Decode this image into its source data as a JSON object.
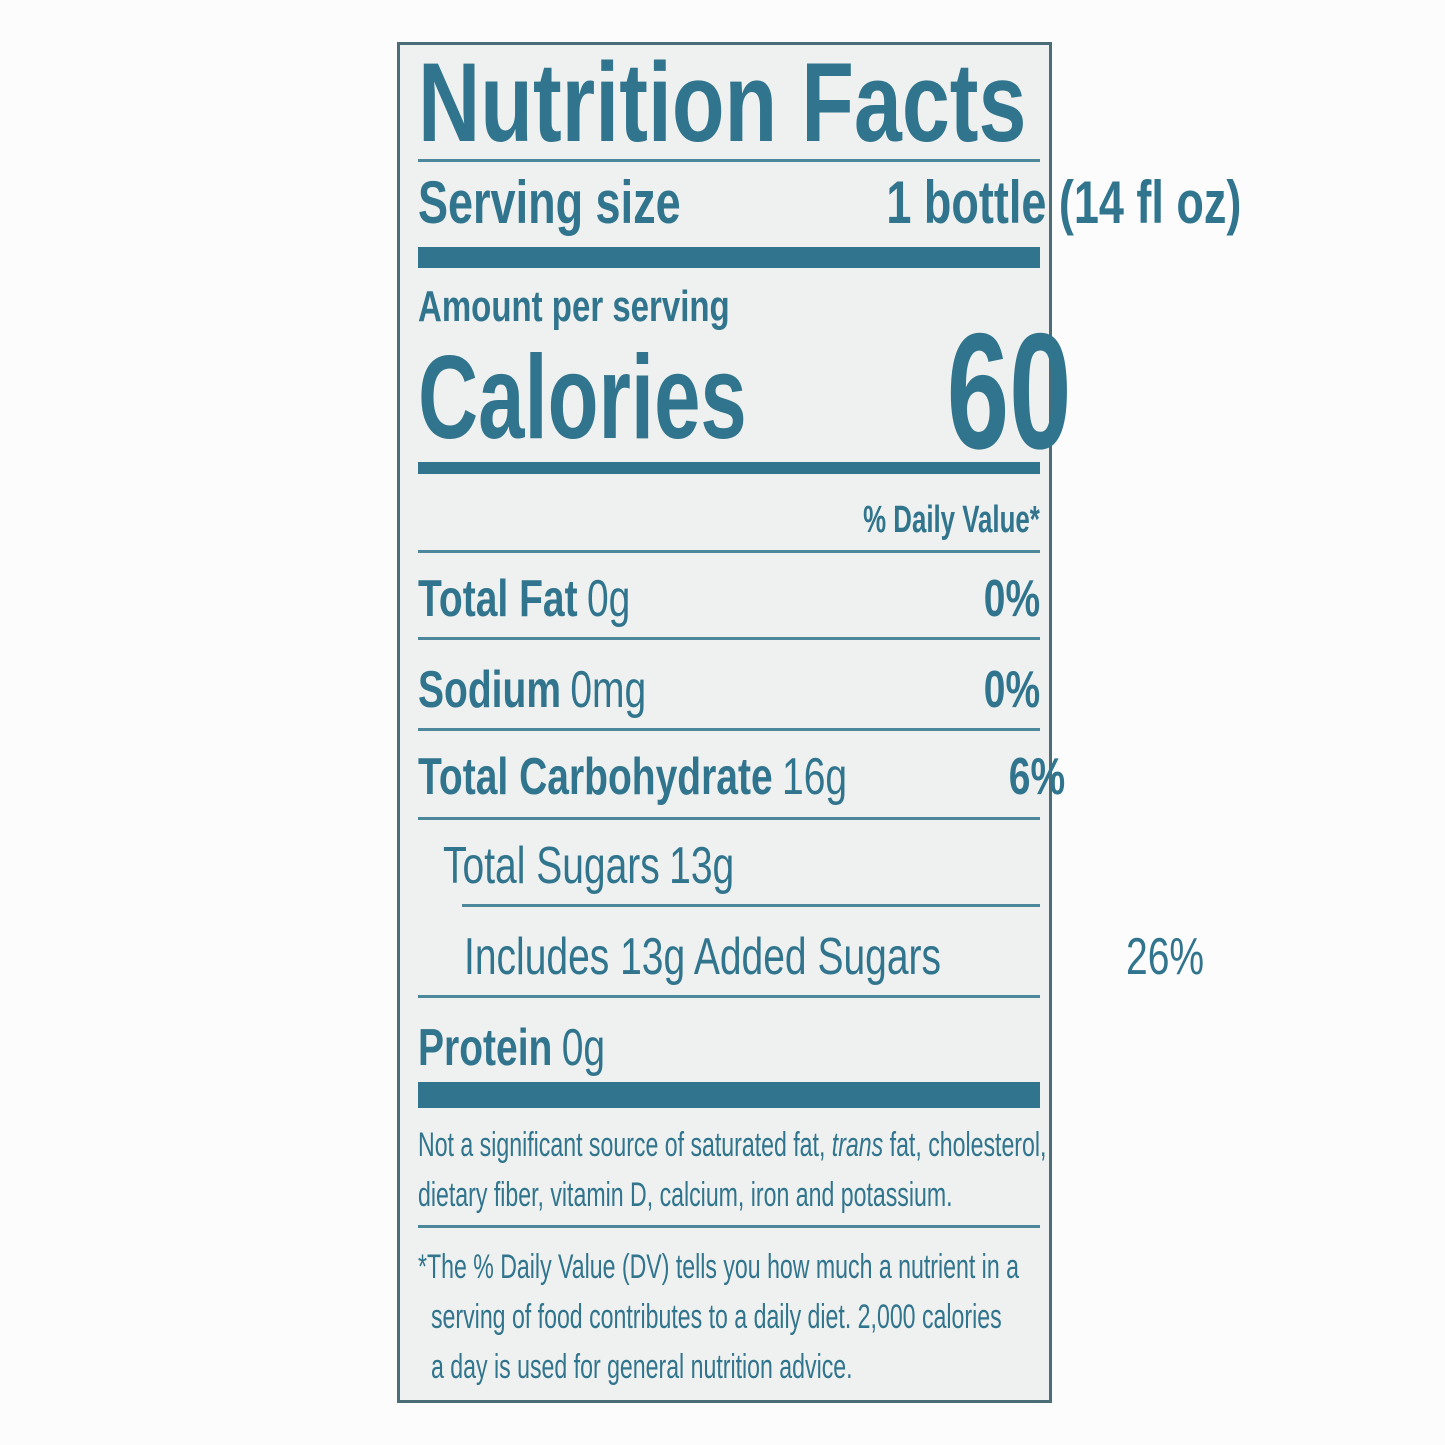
{
  "colors": {
    "teal": "#30748d",
    "paper": "#eef1ef",
    "border": "#4a6d77",
    "page": "#fcfcfc"
  },
  "label": {
    "title": "Nutrition Facts",
    "serving": {
      "label": "Serving size",
      "value": "1 bottle (14 fl oz)"
    },
    "amount_per_serving": "Amount per serving",
    "calories": {
      "label": "Calories",
      "value": "60"
    },
    "daily_value_header": "% Daily Value*",
    "nutrients": [
      {
        "name": "Total Fat",
        "amount": "0g",
        "dv": "0%"
      },
      {
        "name": "Sodium",
        "amount": "0mg",
        "dv": "0%"
      },
      {
        "name": "Total Carbohydrate",
        "amount": "16g",
        "dv": "6%"
      },
      {
        "name": "Total Sugars",
        "amount": "13g",
        "dv": ""
      },
      {
        "name": "Includes 13g Added Sugars",
        "amount": "",
        "dv": "26%"
      },
      {
        "name": "Protein",
        "amount": "0g",
        "dv": ""
      }
    ],
    "footnote_sources": {
      "line1_pre": "Not a significant source of saturated fat, ",
      "line1_italic": "trans",
      "line1_post": " fat, cholesterol,",
      "line2": "dietary fiber, vitamin D, calcium, iron and potassium."
    },
    "footnote_dv": {
      "lines": [
        "*The % Daily Value (DV) tells you how much a nutrient in a",
        "serving of food contributes to a daily diet. 2,000 calories",
        "a day is used for general nutrition advice."
      ]
    }
  }
}
